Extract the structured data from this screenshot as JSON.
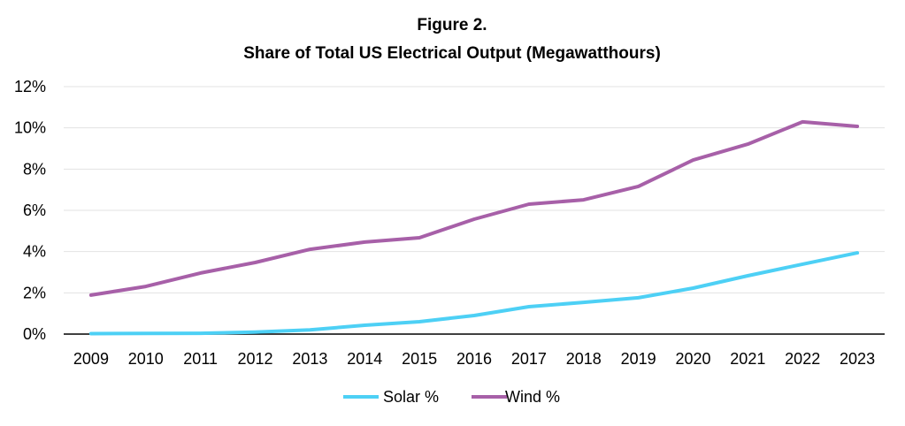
{
  "chart_data": {
    "type": "line",
    "title": "Figure 2.",
    "subtitle": "Share of Total US Electrical Output (Megawatthours)",
    "xlabel": "",
    "ylabel": "",
    "categories": [
      "2009",
      "2010",
      "2011",
      "2012",
      "2013",
      "2014",
      "2015",
      "2016",
      "2017",
      "2018",
      "2019",
      "2020",
      "2021",
      "2022",
      "2023"
    ],
    "ylim": [
      0,
      12
    ],
    "yticks": [
      0,
      2,
      4,
      6,
      8,
      10,
      12
    ],
    "ytick_labels": [
      "0%",
      "2%",
      "4%",
      "6%",
      "8%",
      "10%",
      "12%"
    ],
    "grid": true,
    "legend_position": "bottom",
    "series": [
      {
        "name": "Solar %",
        "color": "#4dd0f5",
        "values": [
          0.02,
          0.03,
          0.04,
          0.1,
          0.2,
          0.43,
          0.6,
          0.9,
          1.33,
          1.54,
          1.76,
          2.23,
          2.83,
          3.39,
          3.94
        ]
      },
      {
        "name": "Wind %",
        "color": "#a760a8",
        "values": [
          1.89,
          2.31,
          2.96,
          3.47,
          4.11,
          4.46,
          4.67,
          5.57,
          6.3,
          6.51,
          7.16,
          8.44,
          9.21,
          10.29,
          10.07
        ]
      }
    ]
  }
}
